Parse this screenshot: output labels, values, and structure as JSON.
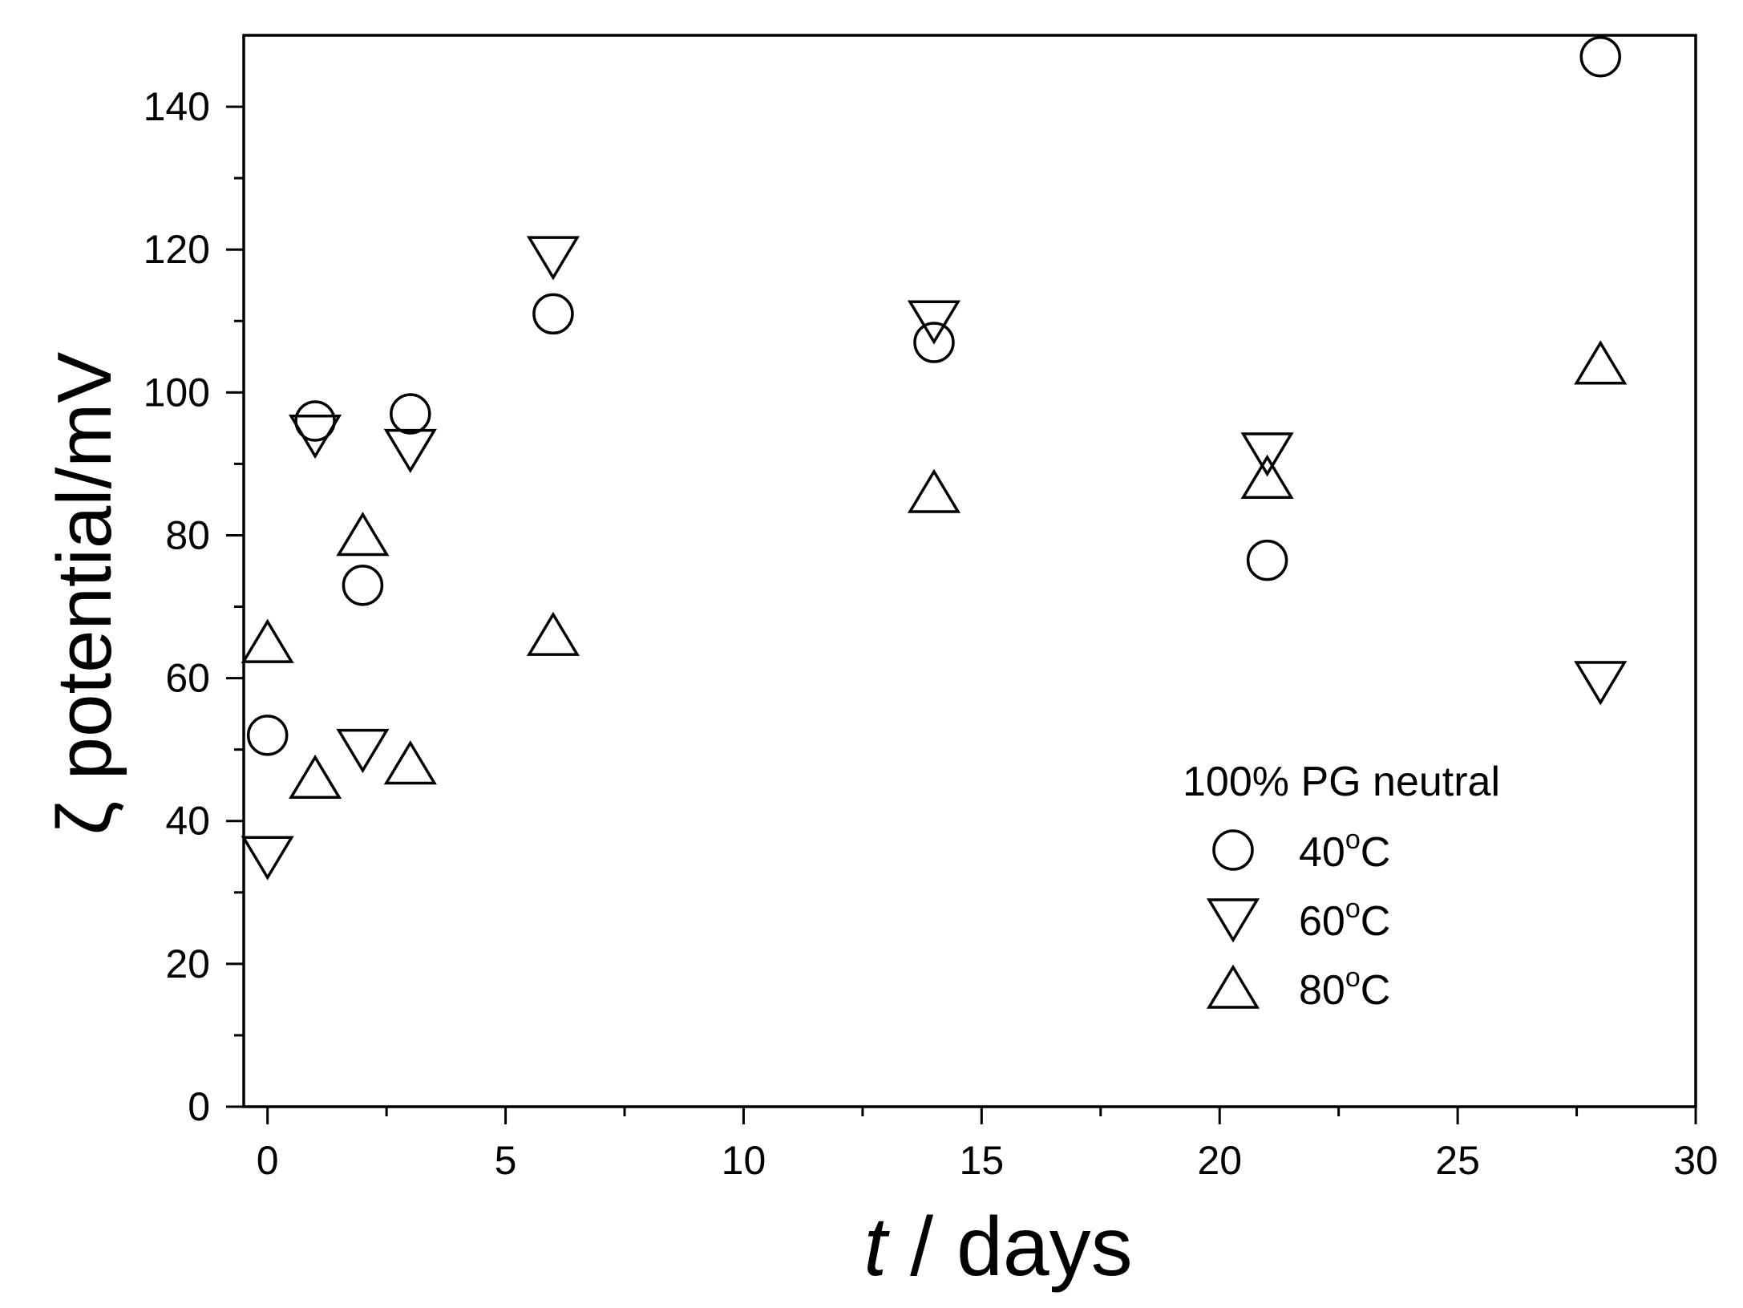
{
  "chart_data": {
    "type": "scatter",
    "title": "",
    "xlabel_italic": "t",
    "xlabel_rest": " / days",
    "ylabel": "ζ potential/mV",
    "xlim": [
      -0.5,
      30
    ],
    "ylim": [
      0,
      150
    ],
    "x_ticks": [
      0,
      5,
      10,
      15,
      20,
      25,
      30
    ],
    "x_tick_labels": [
      "0",
      "5",
      "10",
      "15",
      "20",
      "25",
      "30"
    ],
    "y_ticks": [
      0,
      20,
      40,
      60,
      80,
      100,
      120,
      140
    ],
    "y_tick_labels": [
      "0",
      "20",
      "40",
      "60",
      "80",
      "100",
      "120",
      "140"
    ],
    "grid": false,
    "legend": {
      "title": "100% PG neutral",
      "position": "lower-right",
      "entries": [
        {
          "label": "40",
          "sup": "o",
          "unit": "C",
          "marker": "circle"
        },
        {
          "label": "60",
          "sup": "o",
          "unit": "C",
          "marker": "triangle-down"
        },
        {
          "label": "80",
          "sup": "o",
          "unit": "C",
          "marker": "triangle-up"
        }
      ]
    },
    "series": [
      {
        "name": "40°C",
        "marker": "circle",
        "x": [
          0,
          1,
          2,
          3,
          6,
          14,
          21,
          28
        ],
        "y": [
          52,
          96,
          73,
          97,
          111,
          107,
          76.5,
          147
        ]
      },
      {
        "name": "60°C",
        "marker": "triangle-down",
        "x": [
          0,
          1,
          2,
          3,
          6,
          14,
          21,
          28
        ],
        "y": [
          35,
          94,
          50,
          92,
          119,
          110,
          91.5,
          59.5
        ]
      },
      {
        "name": "80°C",
        "marker": "triangle-up",
        "x": [
          0,
          1,
          2,
          3,
          6,
          14,
          21,
          28
        ],
        "y": [
          65,
          46,
          80,
          48,
          66,
          86,
          88,
          104
        ]
      }
    ]
  }
}
